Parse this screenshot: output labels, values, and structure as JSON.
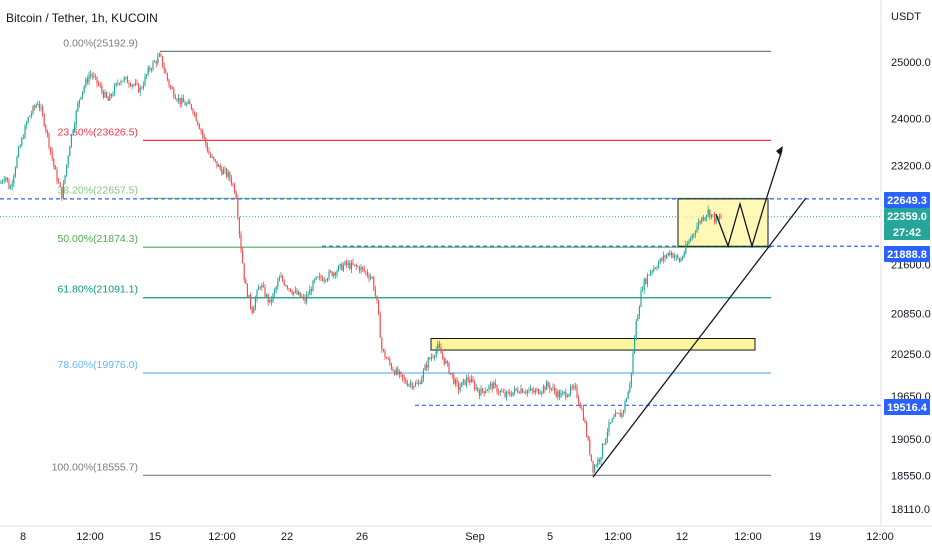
{
  "header": {
    "symbol_title": "Bitcoin / Tether, 1h, KUCOIN",
    "currency": "USDT"
  },
  "colors": {
    "up": "#26a69a",
    "down": "#ef5350",
    "fib_0": "#787b86",
    "fib_236": "#f23645",
    "fib_382": "#81c784",
    "fib_50": "#4caf50",
    "fib_618": "#089981",
    "fib_786": "#64b5f6",
    "fib_100": "#787b86",
    "fib_382_text": "#81c784",
    "fib_50_text": "#4caf50",
    "fib_618_text": "#089981",
    "fib_786_text": "#64b5f6",
    "dashed": "#2962ff",
    "price_badge_blue": "#2962ff",
    "price_badge_green": "#26a69a",
    "highlight_box": "#fff59d"
  },
  "chart_data": {
    "type": "candlestick",
    "title": "Bitcoin / Tether, 1h, KUCOIN",
    "y_unit": "USDT",
    "y_scale": "log",
    "y_ticks": [
      "25000.0",
      "24000.0",
      "23200.0",
      "21600.0",
      "20850.0",
      "20250.0",
      "19650.0",
      "19050.0",
      "18550.0",
      "18110.0"
    ],
    "x_ticks": [
      "8",
      "12:00",
      "15",
      "12:00",
      "22",
      "26",
      "Sep",
      "5",
      "12:00",
      "12",
      "12:00",
      "19",
      "12:00"
    ],
    "fib_levels": [
      {
        "label": "0.00%(25192.9)",
        "value": 25192.9
      },
      {
        "label": "23.60%(23626.5)",
        "value": 23626.5
      },
      {
        "label": "38.20%(22657.5)",
        "value": 22657.5
      },
      {
        "label": "50.00%(21874.3)",
        "value": 21874.3
      },
      {
        "label": "61.80%(21091.1)",
        "value": 21091.1
      },
      {
        "label": "78.60%(19976.0)",
        "value": 19976.0
      },
      {
        "label": "100.00%(18555.7)",
        "value": 18555.7
      }
    ],
    "price_labels": [
      {
        "text": "22649.3",
        "value": 22649.3
      },
      {
        "text": "22359.0",
        "value": 22359.0
      },
      {
        "text": "27:42",
        "value": 22250
      },
      {
        "text": "21888.8",
        "value": 21888.8
      },
      {
        "text": "19516.4",
        "value": 19516.4
      }
    ],
    "horizontal_dashed": [
      22649.3,
      21888.8,
      19516.4
    ],
    "current_price": 22359.0,
    "resistance_level": 21888.8,
    "support_zone": [
      20310,
      20480
    ],
    "range_box": [
      21888.8,
      22649.3
    ],
    "path_anchors": [
      [
        0,
        22900
      ],
      [
        5,
        23050
      ],
      [
        10,
        22800
      ],
      [
        18,
        23400
      ],
      [
        28,
        24000
      ],
      [
        38,
        24300
      ],
      [
        45,
        23900
      ],
      [
        55,
        23100
      ],
      [
        62,
        22700
      ],
      [
        70,
        23600
      ],
      [
        80,
        24400
      ],
      [
        90,
        24800
      ],
      [
        98,
        24600
      ],
      [
        108,
        24300
      ],
      [
        120,
        24700
      ],
      [
        130,
        24650
      ],
      [
        140,
        24500
      ],
      [
        150,
        24900
      ],
      [
        160,
        25100
      ],
      [
        170,
        24550
      ],
      [
        180,
        24300
      ],
      [
        192,
        24200
      ],
      [
        200,
        23850
      ],
      [
        210,
        23350
      ],
      [
        220,
        23150
      ],
      [
        230,
        23000
      ],
      [
        236,
        22750
      ],
      [
        240,
        22000
      ],
      [
        245,
        21300
      ],
      [
        252,
        20900
      ],
      [
        260,
        21300
      ],
      [
        270,
        21000
      ],
      [
        280,
        21400
      ],
      [
        292,
        21200
      ],
      [
        305,
        21050
      ],
      [
        315,
        21350
      ],
      [
        330,
        21450
      ],
      [
        345,
        21600
      ],
      [
        360,
        21550
      ],
      [
        372,
        21400
      ],
      [
        377,
        21000
      ],
      [
        382,
        20300
      ],
      [
        392,
        20050
      ],
      [
        405,
        19850
      ],
      [
        418,
        19800
      ],
      [
        428,
        20150
      ],
      [
        438,
        20350
      ],
      [
        448,
        20050
      ],
      [
        458,
        19750
      ],
      [
        468,
        19900
      ],
      [
        480,
        19700
      ],
      [
        492,
        19800
      ],
      [
        505,
        19650
      ],
      [
        520,
        19750
      ],
      [
        535,
        19700
      ],
      [
        548,
        19800
      ],
      [
        560,
        19650
      ],
      [
        575,
        19750
      ],
      [
        583,
        19400
      ],
      [
        588,
        19000
      ],
      [
        593,
        18650
      ],
      [
        600,
        18800
      ],
      [
        608,
        19200
      ],
      [
        615,
        19350
      ],
      [
        622,
        19400
      ],
      [
        630,
        19800
      ],
      [
        636,
        20700
      ],
      [
        642,
        21250
      ],
      [
        650,
        21500
      ],
      [
        660,
        21650
      ],
      [
        670,
        21800
      ],
      [
        680,
        21650
      ],
      [
        690,
        22000
      ],
      [
        700,
        22300
      ],
      [
        708,
        22450
      ],
      [
        716,
        22300
      ],
      [
        722,
        22359
      ]
    ]
  }
}
